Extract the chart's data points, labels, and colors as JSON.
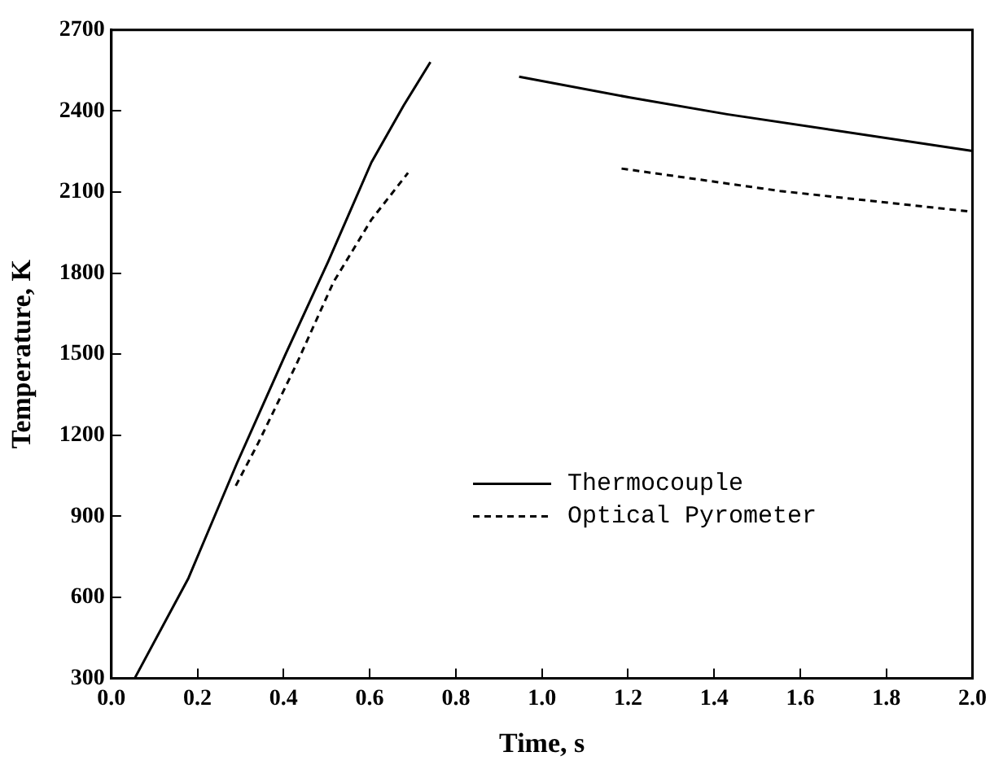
{
  "chart_data": {
    "type": "line",
    "xlabel": "Time, s",
    "ylabel": "Temperature, K",
    "xlim": [
      0,
      2
    ],
    "xticks": [
      {
        "value": 0,
        "label": "0.0"
      },
      {
        "value": 0.2,
        "label": "0.2"
      },
      {
        "value": 0.4,
        "label": "0.4"
      },
      {
        "value": 0.6,
        "label": "0.6"
      },
      {
        "value": 0.8,
        "label": "0.8"
      },
      {
        "value": 1,
        "label": "1.0"
      },
      {
        "value": 1.2,
        "label": "1.2"
      },
      {
        "value": 1.4,
        "label": "1.4"
      },
      {
        "value": 1.6,
        "label": "1.6"
      },
      {
        "value": 1.8,
        "label": "1.8"
      },
      {
        "value": 2,
        "label": "2.0"
      }
    ],
    "ylim": [
      300,
      2700
    ],
    "yticks": [
      300,
      600,
      900,
      1200,
      1500,
      1800,
      2100,
      2400,
      2700
    ],
    "legend": "bottom right",
    "grid": false,
    "marker": "none",
    "series": [
      {
        "name": "Thermocouple",
        "color": "#000000",
        "line_style": "solid",
        "x": [
          0.054,
          0.179,
          0.291,
          0.404,
          0.504,
          0.604,
          0.679,
          0.741,
          0.85,
          0.947,
          1.204,
          1.43,
          2.0
        ],
        "values": [
          300,
          671,
          1094,
          1498,
          1844,
          2210,
          2421,
          2581,
          null,
          2527,
          2450,
          2388,
          2252
        ]
      },
      {
        "name": "Optical Pyrometer",
        "color": "#000000",
        "line_style": "dashed",
        "x": [
          0.289,
          0.341,
          0.429,
          0.516,
          0.604,
          0.689,
          0.9,
          1.185,
          1.553,
          2.0
        ],
        "values": [
          1013,
          1171,
          1460,
          1767,
          1998,
          2171,
          null,
          2187,
          2104,
          2027
        ]
      }
    ]
  }
}
